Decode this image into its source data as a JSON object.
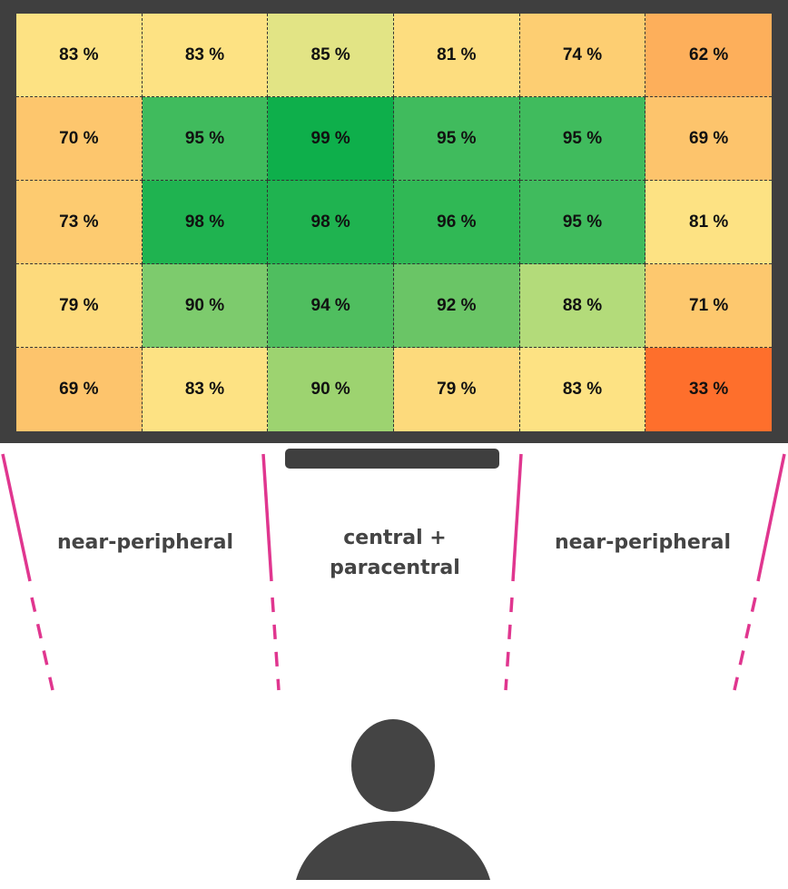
{
  "chart_data": {
    "type": "heatmap",
    "rows": 5,
    "columns": 6,
    "values": [
      [
        83,
        83,
        85,
        81,
        74,
        62
      ],
      [
        70,
        95,
        99,
        95,
        95,
        69
      ],
      [
        73,
        98,
        98,
        96,
        95,
        81
      ],
      [
        79,
        90,
        94,
        92,
        88,
        71
      ],
      [
        69,
        83,
        90,
        79,
        83,
        33
      ]
    ],
    "labels": [
      [
        "83 %",
        "83 %",
        "85 %",
        "81 %",
        "74 %",
        "62 %"
      ],
      [
        "70 %",
        "95 %",
        "99 %",
        "95 %",
        "95 %",
        "69 %"
      ],
      [
        "73 %",
        "98 %",
        "98 %",
        "96 %",
        "95 %",
        "81 %"
      ],
      [
        "79 %",
        "90 %",
        "94 %",
        "92 %",
        "88 %",
        "71 %"
      ],
      [
        "69 %",
        "83 %",
        "90 %",
        "79 %",
        "83 %",
        "33 %"
      ]
    ],
    "colors": [
      [
        "#fde283",
        "#fde283",
        "#e2e485",
        "#fddd7f",
        "#fdce72",
        "#fdaf5b"
      ],
      [
        "#fdc66d",
        "#40bb5d",
        "#0eaf4b",
        "#40bb5d",
        "#40bb5d",
        "#fdc46c"
      ],
      [
        "#fdcb70",
        "#1fb350",
        "#1fb350",
        "#30b855",
        "#40bb5d",
        "#fde283"
      ],
      [
        "#fdda7c",
        "#7dcb6d",
        "#4fbe5f",
        "#6ac566",
        "#b3db7a",
        "#fdc86e"
      ],
      [
        "#fdc46c",
        "#fde283",
        "#9dd370",
        "#fdda7c",
        "#fde283",
        "#fe6f2c"
      ]
    ],
    "grid": true
  },
  "zones": {
    "left_label": "near-peripheral",
    "center_label_line1": "central +",
    "center_label_line2": "paracentral",
    "right_label": "near-peripheral"
  },
  "styles": {
    "monitor_color": "#3f3f3f",
    "boundary_line_color": "#e0368f",
    "viewer_color": "#444444",
    "label_color": "#444444"
  }
}
